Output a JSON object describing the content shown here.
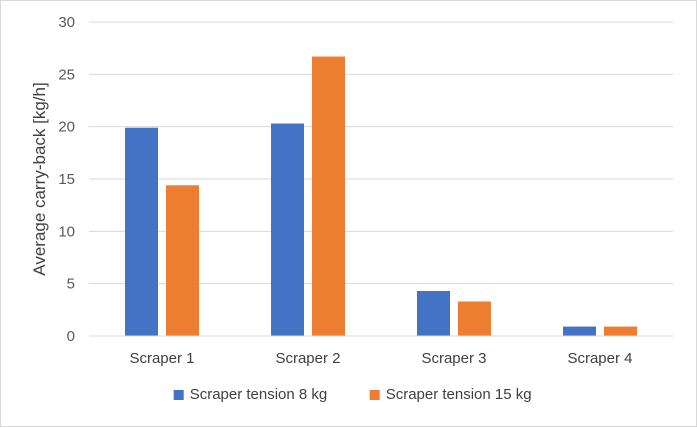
{
  "chart_data": {
    "type": "bar",
    "title": "",
    "xlabel": "",
    "ylabel": "Average carry-back [kg/h]",
    "ylim": [
      0,
      30
    ],
    "yticks": [
      0,
      5,
      10,
      15,
      20,
      25,
      30
    ],
    "grid": true,
    "legend_position": "bottom",
    "categories": [
      "Scraper 1",
      "Scraper 2",
      "Scraper 3",
      "Scraper 4"
    ],
    "series": [
      {
        "name": "Scraper tension 8 kg",
        "color": "#4472c4",
        "values": [
          19.9,
          20.3,
          4.3,
          0.9
        ]
      },
      {
        "name": "Scraper tension 15 kg",
        "color": "#ed7d31",
        "values": [
          14.4,
          26.7,
          3.3,
          0.9
        ]
      }
    ]
  }
}
